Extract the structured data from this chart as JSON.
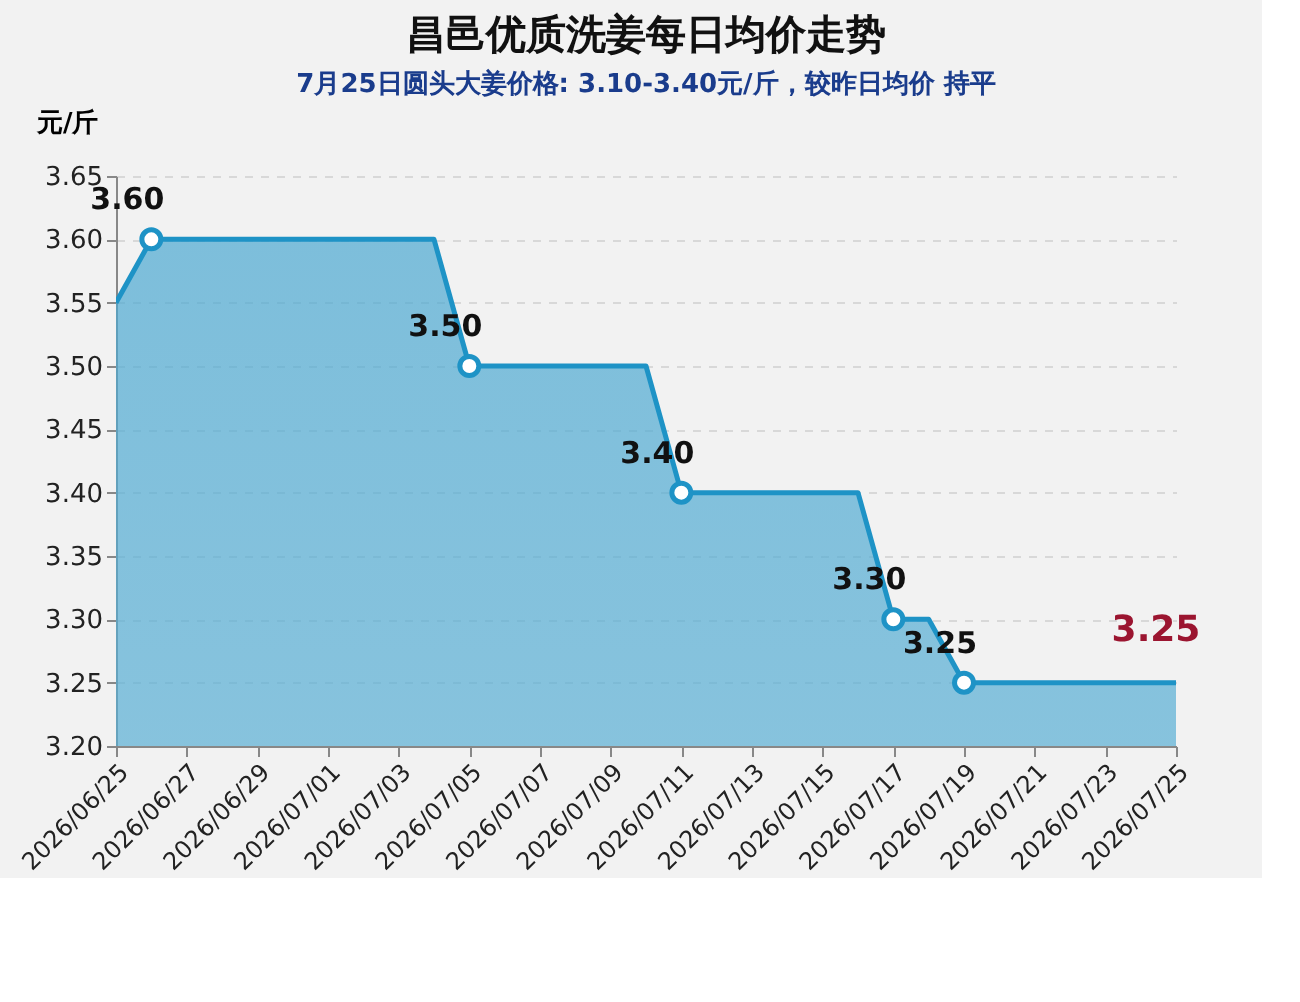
{
  "chart_data": {
    "type": "area",
    "title": "昌邑优质洗姜每日均价走势",
    "subtitle": "7月25日圆头大姜价格: 3.10-3.40元/斤，较昨日均价 持平",
    "ylabel": "元/斤",
    "series": [
      {
        "color": "#1e93c6",
        "x": [
          "2026-06-25",
          "2026-06-26",
          "2026-07-04",
          "2026-07-05",
          "2026-07-10",
          "2026-07-11",
          "2026-07-16",
          "2026-07-17",
          "2026-07-18",
          "2026-07-19",
          "2026-07-25"
        ],
        "values": [
          3.55,
          3.6,
          3.6,
          3.5,
          3.5,
          3.4,
          3.4,
          3.3,
          3.3,
          3.25,
          3.25
        ],
        "value_labels": [
          null,
          "3.60",
          null,
          "3.50",
          null,
          "3.40",
          null,
          "3.30",
          null,
          "3.25",
          null
        ]
      }
    ],
    "annotations": [
      {
        "text": "3.25",
        "x": "2026-07-25",
        "y": 3.25
      }
    ],
    "xlim": [
      "2026-06-25",
      "2026-07-25"
    ],
    "xticks": [
      {
        "value": "2026-06-25",
        "label": "2026/06/25"
      },
      {
        "value": "2026-06-27",
        "label": "2026/06/27"
      },
      {
        "value": "2026-06-29",
        "label": "2026/06/29"
      },
      {
        "value": "2026-07-01",
        "label": "2026/07/01"
      },
      {
        "value": "2026-07-03",
        "label": "2026/07/03"
      },
      {
        "value": "2026-07-05",
        "label": "2026/07/05"
      },
      {
        "value": "2026-07-07",
        "label": "2026/07/07"
      },
      {
        "value": "2026-07-09",
        "label": "2026/07/09"
      },
      {
        "value": "2026-07-11",
        "label": "2026/07/11"
      },
      {
        "value": "2026-07-13",
        "label": "2026/07/13"
      },
      {
        "value": "2026-07-15",
        "label": "2026/07/15"
      },
      {
        "value": "2026-07-17",
        "label": "2026/07/17"
      },
      {
        "value": "2026-07-19",
        "label": "2026/07/19"
      },
      {
        "value": "2026-07-21",
        "label": "2026/07/21"
      },
      {
        "value": "2026-07-23",
        "label": "2026/07/23"
      },
      {
        "value": "2026-07-25",
        "label": "2026/07/25"
      }
    ],
    "ylim": [
      3.2,
      3.65
    ],
    "yticks": [
      {
        "value": 3.2,
        "label": "3.20"
      },
      {
        "value": 3.25,
        "label": "3.25"
      },
      {
        "value": 3.3,
        "label": "3.30"
      },
      {
        "value": 3.35,
        "label": "3.35"
      },
      {
        "value": 3.4,
        "label": "3.40"
      },
      {
        "value": 3.45,
        "label": "3.45"
      },
      {
        "value": 3.5,
        "label": "3.50"
      },
      {
        "value": 3.55,
        "label": "3.55"
      },
      {
        "value": 3.6,
        "label": "3.60"
      },
      {
        "value": 3.65,
        "label": "3.65"
      }
    ],
    "grid": "y"
  }
}
